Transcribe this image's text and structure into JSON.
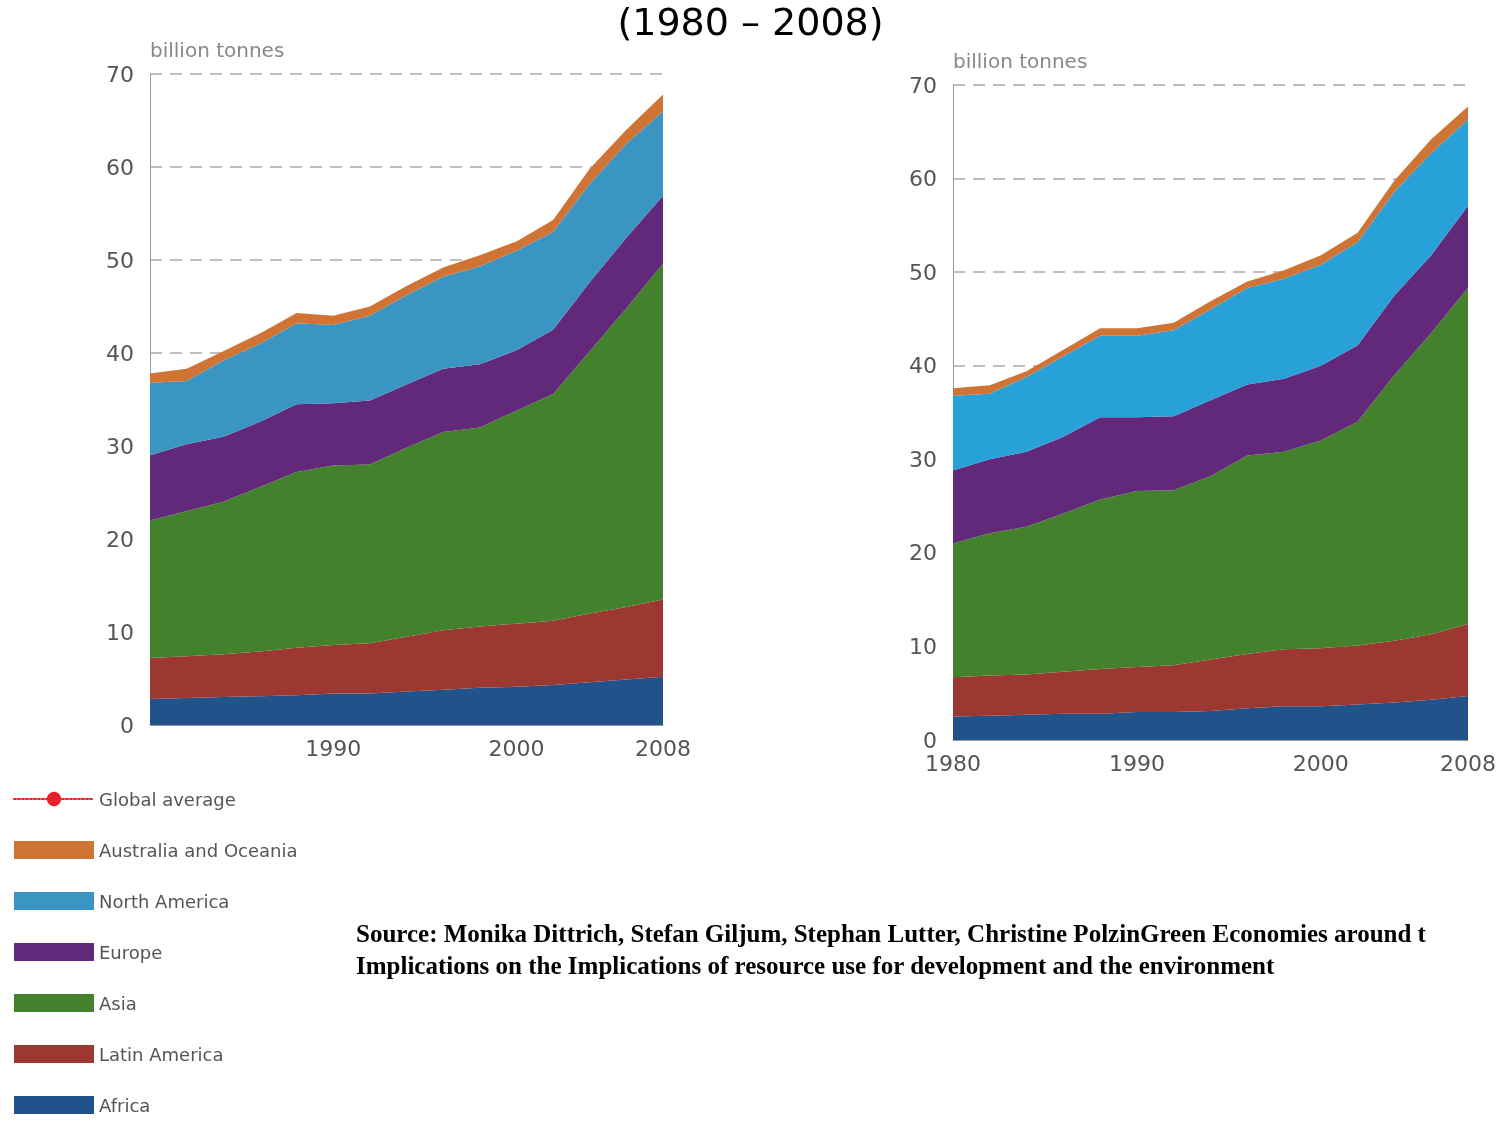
{
  "chart_data": [
    {
      "type": "area",
      "title": "(1980 – 2008)",
      "ylabel": "billion tonnes",
      "stacked": true,
      "x": [
        1980,
        1982,
        1984,
        1986,
        1988,
        1990,
        1992,
        1994,
        1996,
        1998,
        2000,
        2002,
        2004,
        2006,
        2008
      ],
      "xlim": [
        1980,
        2008
      ],
      "xticks": [
        1990,
        2000,
        2008
      ],
      "ylim": [
        0,
        70
      ],
      "yticks": [
        0,
        10,
        20,
        30,
        40,
        50,
        60,
        70
      ],
      "grid": "y",
      "legend": "bottom left",
      "series": [
        {
          "name": "Africa",
          "color": "#21528a",
          "values": [
            2.8,
            2.9,
            3.0,
            3.1,
            3.2,
            3.4,
            3.4,
            3.6,
            3.8,
            4.0,
            4.1,
            4.3,
            4.6,
            4.9,
            5.2
          ]
        },
        {
          "name": "Latin America",
          "color": "#9c3731",
          "values": [
            4.4,
            4.5,
            4.6,
            4.8,
            5.1,
            5.2,
            5.4,
            5.9,
            6.4,
            6.6,
            6.8,
            6.9,
            7.4,
            7.8,
            8.3
          ]
        },
        {
          "name": "Asia",
          "color": "#43812c",
          "values": [
            14.8,
            15.6,
            16.4,
            17.7,
            18.9,
            19.3,
            19.2,
            20.3,
            21.3,
            21.4,
            22.9,
            24.4,
            28.2,
            32.1,
            36.1
          ]
        },
        {
          "name": "Europe",
          "color": "#62287a",
          "values": [
            7.0,
            7.2,
            7.0,
            7.0,
            7.3,
            6.7,
            6.9,
            6.8,
            6.8,
            6.8,
            6.5,
            6.9,
            7.4,
            7.6,
            7.3
          ]
        },
        {
          "name": "North America",
          "color": "#3a95c3",
          "values": [
            7.8,
            6.8,
            8.2,
            8.4,
            8.7,
            8.4,
            9.1,
            9.6,
            9.9,
            10.5,
            10.7,
            10.5,
            10.6,
            10.1,
            9.1
          ]
        },
        {
          "name": "Australia and Oceania",
          "color": "#d07436",
          "values": [
            1.0,
            1.3,
            1.0,
            1.1,
            1.1,
            1.0,
            1.0,
            1.0,
            1.0,
            1.2,
            1.0,
            1.3,
            1.6,
            1.5,
            1.8
          ]
        },
        {
          "name": "Global average",
          "type": "line",
          "line_style": "dotted",
          "color": "#e8202a",
          "values": [
            null,
            null,
            null,
            null,
            null,
            null,
            null,
            null,
            null,
            null,
            null,
            null,
            null,
            null,
            null
          ]
        }
      ]
    },
    {
      "type": "area",
      "ylabel": "billion tonnes",
      "stacked": true,
      "x": [
        1980,
        1982,
        1984,
        1986,
        1988,
        1990,
        1992,
        1994,
        1996,
        1998,
        2000,
        2002,
        2004,
        2006,
        2008
      ],
      "xlim": [
        1980,
        2008
      ],
      "xticks": [
        1980,
        1990,
        2000,
        2008
      ],
      "ylim": [
        0,
        70
      ],
      "yticks": [
        0,
        10,
        20,
        30,
        40,
        50,
        60,
        70
      ],
      "grid": "y",
      "annotations": [
        "Source: Monika Dittrich, Stefan Giljum, Stephan Lutter, Christine PolzinGreen Economies around t Implications on the Implications of resource use  for development and the environment"
      ],
      "series": [
        {
          "color": "#21528a",
          "values": [
            2.5,
            2.6,
            2.7,
            2.8,
            2.8,
            3.0,
            3.0,
            3.1,
            3.4,
            3.6,
            3.6,
            3.8,
            4.0,
            4.3,
            4.7
          ]
        },
        {
          "color": "#9c3731",
          "values": [
            4.2,
            4.3,
            4.3,
            4.5,
            4.8,
            4.8,
            5.0,
            5.5,
            5.8,
            6.1,
            6.2,
            6.3,
            6.6,
            7.0,
            7.7
          ]
        },
        {
          "color": "#43812c",
          "values": [
            14.3,
            15.2,
            15.8,
            16.9,
            18.1,
            18.8,
            18.7,
            19.6,
            21.2,
            21.1,
            22.2,
            23.9,
            28.4,
            32.2,
            35.9
          ]
        },
        {
          "color": "#62287a",
          "values": [
            7.8,
            7.9,
            8.0,
            8.2,
            8.8,
            7.9,
            7.9,
            8.1,
            7.6,
            7.8,
            8.0,
            8.2,
            8.5,
            8.3,
            8.8
          ]
        },
        {
          "color": "#28a0d8",
          "values": [
            8.0,
            7.0,
            8.0,
            8.6,
            8.7,
            8.7,
            9.2,
            9.7,
            10.3,
            10.7,
            10.8,
            11.0,
            11.1,
            10.9,
            9.2
          ]
        },
        {
          "color": "#d07436",
          "values": [
            0.8,
            0.9,
            0.6,
            0.7,
            0.8,
            0.8,
            0.8,
            0.9,
            0.7,
            0.9,
            1.0,
            1.0,
            1.2,
            1.5,
            1.4
          ]
        }
      ]
    }
  ]
}
